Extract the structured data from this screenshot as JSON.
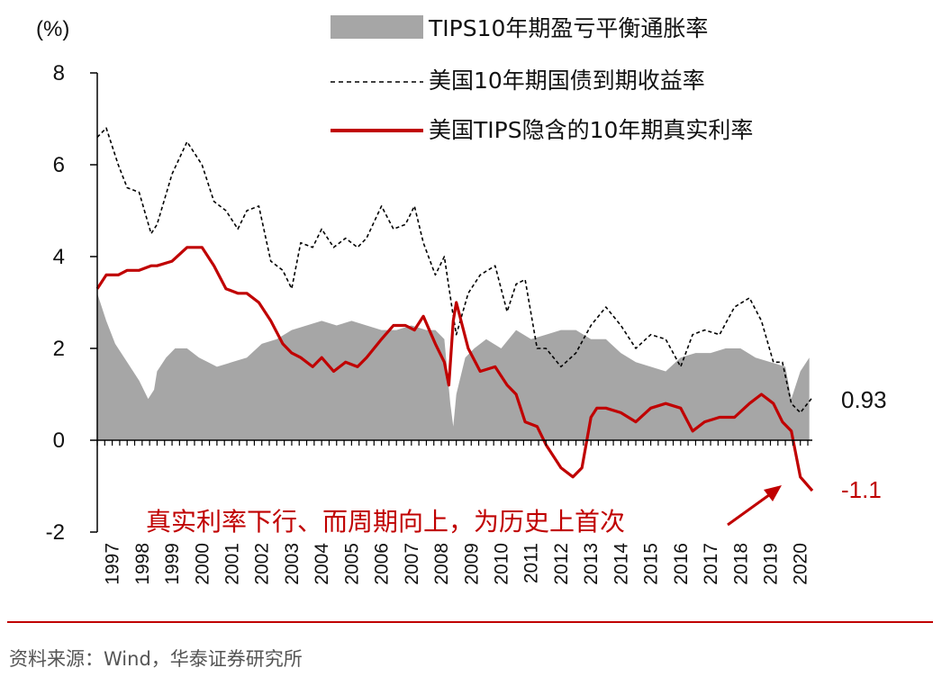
{
  "chart_data": {
    "type": "line",
    "unit_label": "(%)",
    "y_ticks": [
      "8",
      "6",
      "4",
      "2",
      "0",
      "-2"
    ],
    "ylim": [
      -2,
      8
    ],
    "x_tick_labels": [
      "1997",
      "1998",
      "1999",
      "2000",
      "2001",
      "2002",
      "2003",
      "2004",
      "2005",
      "2006",
      "2007",
      "2008",
      "2009",
      "2010",
      "2011",
      "2012",
      "2013",
      "2014",
      "2015",
      "2016",
      "2017",
      "2018",
      "2019",
      "2020"
    ],
    "x_years": [
      1997,
      1998,
      1999,
      2000,
      2001,
      2002,
      2003,
      2004,
      2005,
      2006,
      2007,
      2008,
      2009,
      2010,
      2011,
      2012,
      2013,
      2014,
      2015,
      2016,
      2017,
      2018,
      2019,
      2020
    ],
    "xlim": [
      1997.0,
      2020.9
    ],
    "legend": [
      {
        "label": "TIPS10年期盈亏平衡通胀率",
        "style": "area",
        "color": "#a6a6a6"
      },
      {
        "label": "美国10年期国债到期收益率",
        "style": "dashed",
        "color": "#000000"
      },
      {
        "label": "美国TIPS隐含的10年期真实利率",
        "style": "solid",
        "color": "#c00000"
      }
    ],
    "series": [
      {
        "name": "TIPS10年期盈亏平衡通胀率",
        "type": "area",
        "x": [
          1997.0,
          1997.3,
          1997.6,
          1998.0,
          1998.4,
          1998.7,
          1998.9,
          1999.0,
          1999.3,
          1999.6,
          2000.0,
          2000.4,
          2000.7,
          2001.0,
          2001.5,
          2002.0,
          2002.5,
          2003.0,
          2003.5,
          2004.0,
          2004.5,
          2005.0,
          2005.5,
          2006.0,
          2006.5,
          2007.0,
          2007.5,
          2008.0,
          2008.3,
          2008.6,
          2008.8,
          2008.9,
          2009.0,
          2009.3,
          2009.6,
          2010.0,
          2010.5,
          2011.0,
          2011.5,
          2012.0,
          2012.5,
          2013.0,
          2013.5,
          2014.0,
          2014.5,
          2015.0,
          2015.5,
          2016.0,
          2016.5,
          2017.0,
          2017.5,
          2018.0,
          2018.5,
          2019.0,
          2019.5,
          2020.0,
          2020.2,
          2020.5,
          2020.8
        ],
        "values": [
          3.2,
          2.6,
          2.1,
          1.7,
          1.3,
          0.9,
          1.1,
          1.5,
          1.8,
          2.0,
          2.0,
          1.8,
          1.7,
          1.6,
          1.7,
          1.8,
          2.1,
          2.2,
          2.4,
          2.5,
          2.6,
          2.5,
          2.6,
          2.5,
          2.4,
          2.4,
          2.5,
          2.4,
          2.4,
          2.2,
          0.8,
          0.3,
          1.0,
          1.8,
          2.0,
          2.2,
          2.0,
          2.4,
          2.2,
          2.3,
          2.4,
          2.4,
          2.2,
          2.2,
          1.9,
          1.7,
          1.6,
          1.5,
          1.8,
          1.9,
          1.9,
          2.0,
          2.0,
          1.8,
          1.7,
          1.6,
          0.9,
          1.5,
          1.8
        ]
      },
      {
        "name": "美国10年期国债到期收益率",
        "type": "line",
        "x": [
          1997.0,
          1997.3,
          1997.7,
          1998.0,
          1998.4,
          1998.8,
          1999.0,
          1999.5,
          2000.0,
          2000.5,
          2000.9,
          2001.3,
          2001.7,
          2002.0,
          2002.4,
          2002.8,
          2003.2,
          2003.5,
          2003.8,
          2004.2,
          2004.5,
          2004.9,
          2005.3,
          2005.7,
          2006.0,
          2006.5,
          2006.9,
          2007.3,
          2007.6,
          2007.9,
          2008.3,
          2008.6,
          2008.9,
          2009.0,
          2009.4,
          2009.8,
          2010.3,
          2010.7,
          2011.0,
          2011.3,
          2011.7,
          2012.0,
          2012.5,
          2013.0,
          2013.5,
          2014.0,
          2014.5,
          2015.0,
          2015.5,
          2016.0,
          2016.5,
          2016.9,
          2017.3,
          2017.8,
          2018.3,
          2018.8,
          2019.2,
          2019.6,
          2019.9,
          2020.2,
          2020.5,
          2020.9
        ],
        "values": [
          6.6,
          6.8,
          6.0,
          5.5,
          5.4,
          4.5,
          4.7,
          5.8,
          6.5,
          6.0,
          5.2,
          5.0,
          4.6,
          5.0,
          5.1,
          3.9,
          3.7,
          3.3,
          4.3,
          4.2,
          4.6,
          4.2,
          4.4,
          4.2,
          4.4,
          5.1,
          4.6,
          4.7,
          5.1,
          4.3,
          3.6,
          4.0,
          2.7,
          2.3,
          3.2,
          3.6,
          3.8,
          2.8,
          3.4,
          3.5,
          2.0,
          2.0,
          1.6,
          1.9,
          2.5,
          2.9,
          2.5,
          2.0,
          2.3,
          2.2,
          1.6,
          2.3,
          2.4,
          2.3,
          2.9,
          3.1,
          2.6,
          1.7,
          1.7,
          0.8,
          0.6,
          0.93
        ]
      },
      {
        "name": "美国TIPS隐含的10年期真实利率",
        "type": "line",
        "x": [
          1997.0,
          1997.3,
          1997.7,
          1998.0,
          1998.4,
          1998.8,
          1999.0,
          1999.5,
          2000.0,
          2000.5,
          2000.9,
          2001.3,
          2001.7,
          2002.0,
          2002.4,
          2002.8,
          2003.2,
          2003.5,
          2003.8,
          2004.2,
          2004.5,
          2004.9,
          2005.3,
          2005.7,
          2006.0,
          2006.5,
          2006.9,
          2007.3,
          2007.6,
          2007.9,
          2008.3,
          2008.6,
          2008.75,
          2008.9,
          2009.0,
          2009.4,
          2009.8,
          2010.3,
          2010.7,
          2011.0,
          2011.3,
          2011.7,
          2012.0,
          2012.5,
          2012.9,
          2013.2,
          2013.5,
          2013.7,
          2014.0,
          2014.5,
          2015.0,
          2015.5,
          2016.0,
          2016.5,
          2016.9,
          2017.3,
          2017.8,
          2018.3,
          2018.8,
          2019.2,
          2019.6,
          2019.9,
          2020.2,
          2020.5,
          2020.9
        ],
        "values": [
          3.3,
          3.6,
          3.6,
          3.7,
          3.7,
          3.8,
          3.8,
          3.9,
          4.2,
          4.2,
          3.8,
          3.3,
          3.2,
          3.2,
          3.0,
          2.6,
          2.1,
          1.9,
          1.8,
          1.6,
          1.8,
          1.5,
          1.7,
          1.6,
          1.8,
          2.2,
          2.5,
          2.5,
          2.4,
          2.7,
          2.1,
          1.7,
          1.2,
          2.6,
          3.0,
          2.0,
          1.5,
          1.6,
          1.2,
          1.0,
          0.4,
          0.3,
          -0.1,
          -0.6,
          -0.8,
          -0.6,
          0.5,
          0.7,
          0.7,
          0.6,
          0.4,
          0.7,
          0.8,
          0.7,
          0.2,
          0.4,
          0.5,
          0.5,
          0.8,
          1.0,
          0.8,
          0.4,
          0.2,
          -0.8,
          -1.1
        ]
      }
    ],
    "end_labels": [
      {
        "text": "0.93",
        "color": "#111111"
      },
      {
        "text": "-1.1",
        "color": "#c00000"
      }
    ],
    "annotation": {
      "text": "真实利率下行、而周期向上，为历史上首次",
      "color": "#c00000"
    }
  },
  "footer": {
    "source": "资料来源：Wind，华泰证券研究所"
  }
}
